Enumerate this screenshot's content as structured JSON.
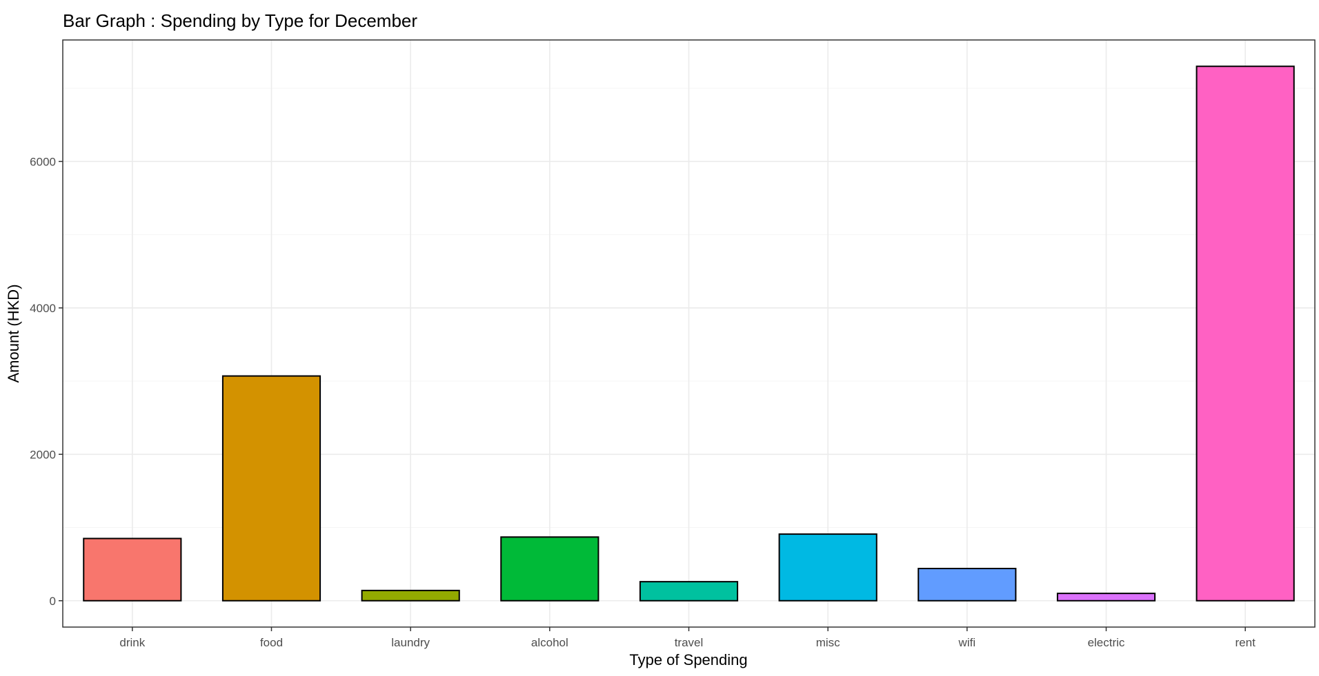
{
  "chart_data": {
    "type": "bar",
    "title": "Bar Graph : Spending by Type for December",
    "xlabel": "Type of Spending",
    "ylabel": "Amount (HKD)",
    "categories": [
      "drink",
      "food",
      "laundry",
      "alcohol",
      "travel",
      "misc",
      "wifi",
      "electric",
      "rent"
    ],
    "values": [
      850,
      3070,
      140,
      870,
      260,
      910,
      440,
      100,
      7300
    ],
    "colors": [
      "#F8766D",
      "#D39200",
      "#93AA00",
      "#00BA38",
      "#00C19F",
      "#00B9E3",
      "#619CFF",
      "#DB72FB",
      "#FF61C3"
    ],
    "ylim": [
      -360,
      7660
    ],
    "yticks": [
      0,
      2000,
      4000,
      6000
    ],
    "grid": true,
    "legend": "none"
  }
}
